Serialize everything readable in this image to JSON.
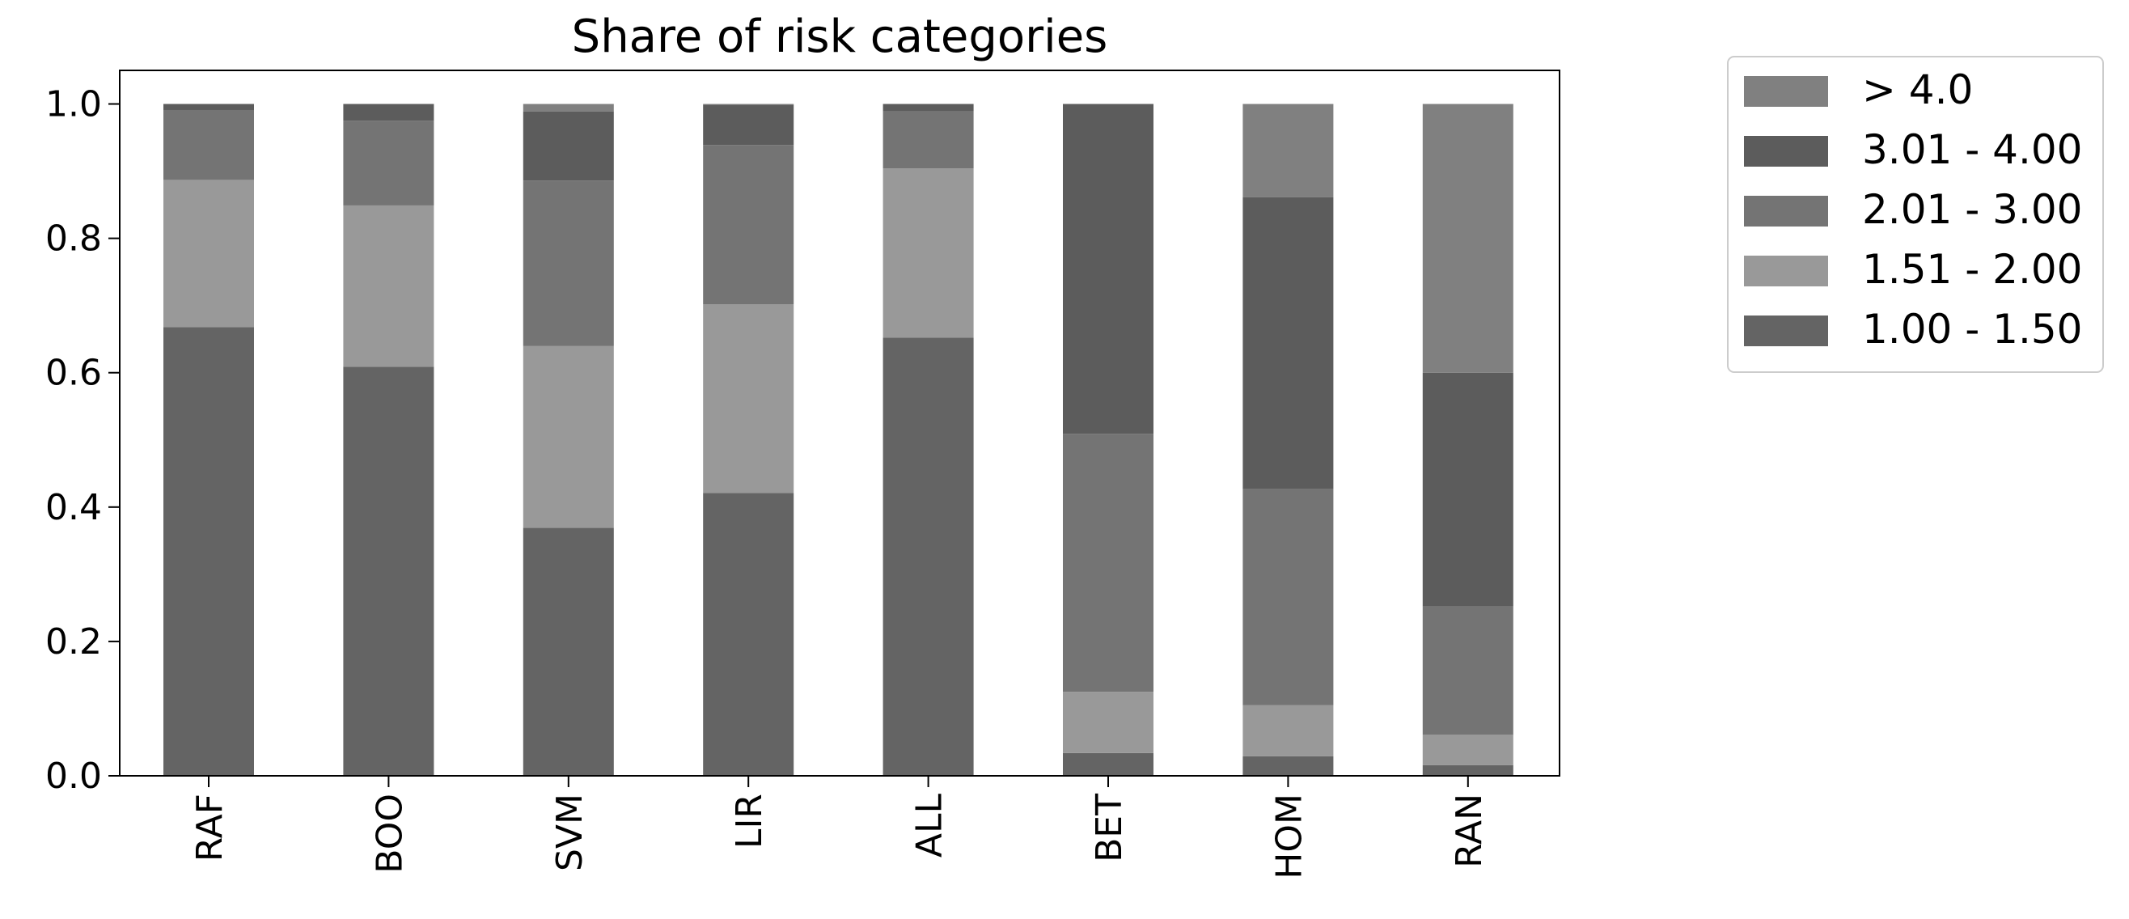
{
  "chart_data": {
    "type": "bar",
    "stacked": true,
    "title": "Share of risk categories",
    "xlabel": "",
    "ylabel": "",
    "ylim": [
      0,
      1.05
    ],
    "yticks": [
      "0.0",
      "0.2",
      "0.4",
      "0.6",
      "0.8",
      "1.0"
    ],
    "categories": [
      "RAF",
      "BOO",
      "SVM",
      "LIR",
      "ALL",
      "BET",
      "HOM",
      "RAN"
    ],
    "series": [
      {
        "name": "1.00 - 1.50",
        "color": "#646464",
        "values": [
          0.668,
          0.609,
          0.369,
          0.421,
          0.652,
          0.034,
          0.029,
          0.016
        ]
      },
      {
        "name": "1.51 - 2.00",
        "color": "#999999",
        "values": [
          0.219,
          0.24,
          0.271,
          0.281,
          0.252,
          0.091,
          0.076,
          0.045
        ]
      },
      {
        "name": "2.01 - 3.00",
        "color": "#747474",
        "values": [
          0.104,
          0.126,
          0.246,
          0.237,
          0.085,
          0.384,
          0.322,
          0.191
        ]
      },
      {
        "name": "3.01 - 4.00",
        "color": "#5c5c5c",
        "values": [
          0.009,
          0.025,
          0.103,
          0.06,
          0.011,
          0.491,
          0.434,
          0.348
        ]
      },
      {
        "name": "> 4.0",
        "color": "#808080",
        "values": [
          0.0,
          0.0,
          0.011,
          0.001,
          0.0,
          0.0,
          0.139,
          0.4
        ]
      }
    ],
    "legend": {
      "position": "outside-top-right",
      "order": [
        "> 4.0",
        "3.01 - 4.00",
        "2.01 - 3.00",
        "1.51 - 2.00",
        "1.00 - 1.50"
      ]
    },
    "grid": false
  }
}
